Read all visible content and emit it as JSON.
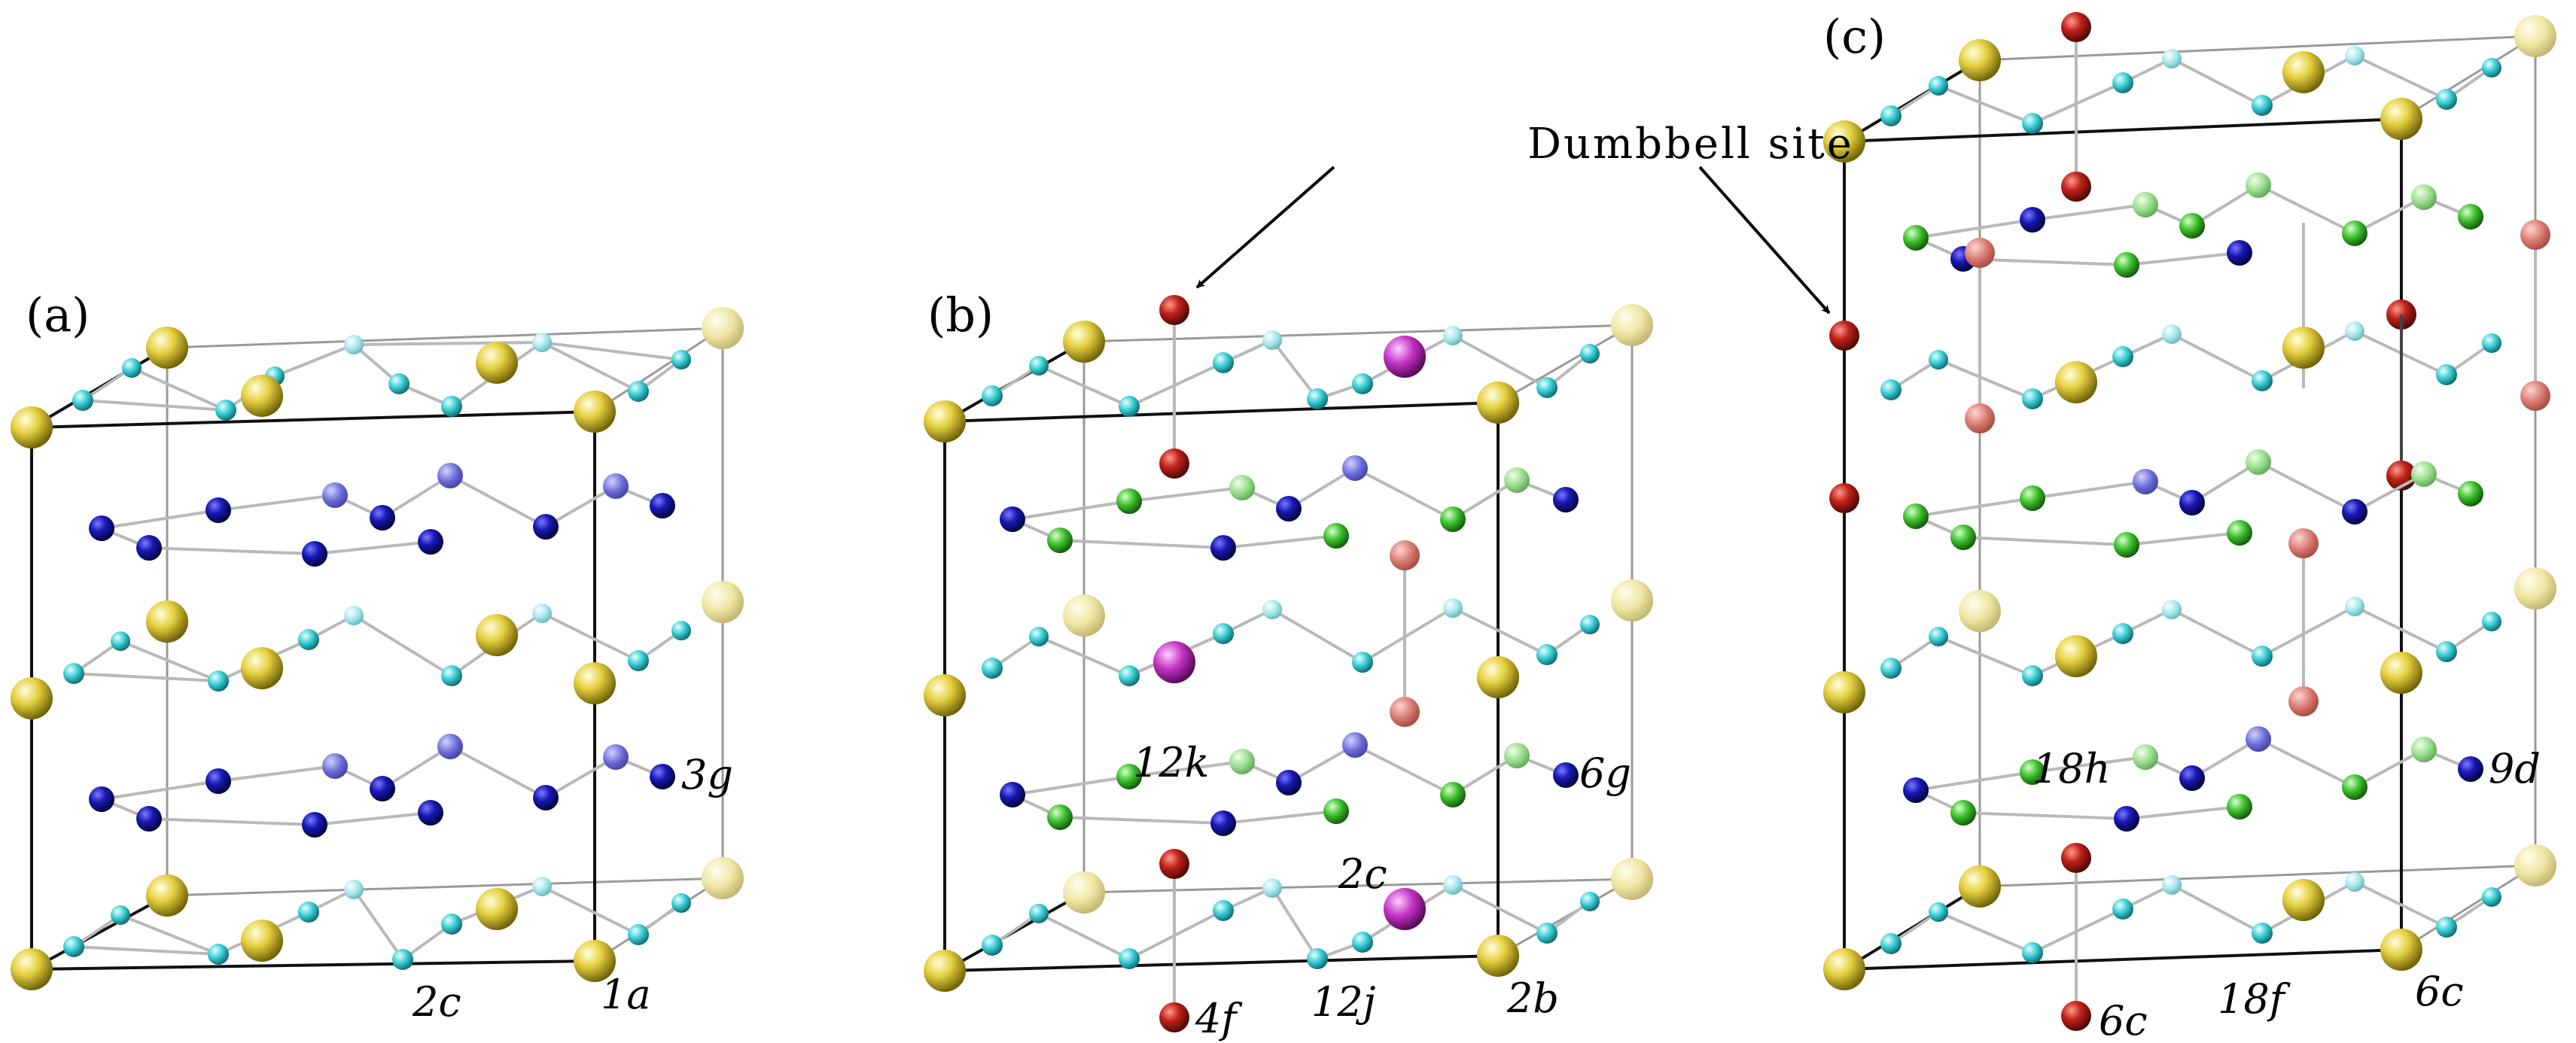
{
  "figure": {
    "callout_label": "Dumbbell site",
    "colors": {
      "yellow": "#d8c233",
      "cyan": "#35c4cc",
      "blue": "#12129c",
      "green": "#39b829",
      "red": "#b41a10",
      "magenta": "#b427b4"
    },
    "panels": [
      {
        "id": "a",
        "label": "(a)",
        "site_labels": [
          {
            "text": "3g",
            "atom": "blue-sphere"
          },
          {
            "text": "2c",
            "atom": "cyan-sphere"
          },
          {
            "text": "1a",
            "atom": "yellow-sphere"
          }
        ]
      },
      {
        "id": "b",
        "label": "(b)",
        "site_labels": [
          {
            "text": "12k",
            "atom": "green-sphere"
          },
          {
            "text": "6g",
            "atom": "blue-sphere"
          },
          {
            "text": "2c",
            "atom": "magenta-sphere"
          },
          {
            "text": "4f",
            "atom": "red-sphere"
          },
          {
            "text": "12j",
            "atom": "cyan-sphere"
          },
          {
            "text": "2b",
            "atom": "yellow-sphere"
          }
        ]
      },
      {
        "id": "c",
        "label": "(c)",
        "site_labels": [
          {
            "text": "18h",
            "atom": "green-sphere"
          },
          {
            "text": "9d",
            "atom": "blue-sphere"
          },
          {
            "text": "6c",
            "atom": "red-sphere"
          },
          {
            "text": "18f",
            "atom": "cyan-sphere"
          },
          {
            "text": "6c",
            "atom": "yellow-sphere"
          }
        ]
      }
    ]
  }
}
